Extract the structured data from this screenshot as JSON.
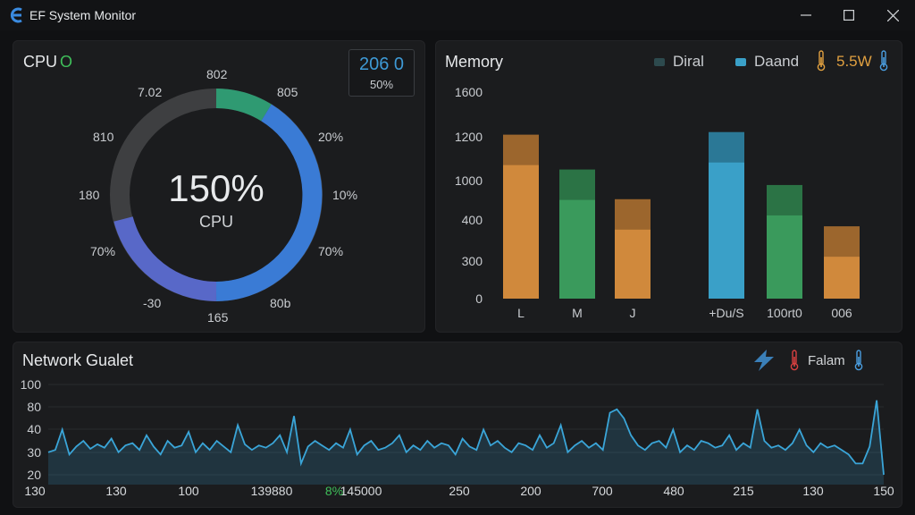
{
  "window": {
    "title": "EF System Monitor"
  },
  "colors": {
    "background": "#101113",
    "panel": "#1b1c1e",
    "accent_blue": "#3a7bd5",
    "accent_green": "#3a9a5c",
    "accent_orange": "#d0893c",
    "accent_cyan": "#3aa0c8",
    "network_line": "#3aa5d8"
  },
  "cpu": {
    "title": "CPU",
    "status_glyph": "O",
    "center_value": "150%",
    "center_label": "CPU",
    "badge_value": "206 0",
    "badge_sub": "50%",
    "gauge_labels": [
      "802",
      "805",
      "20%",
      "10%",
      "70%",
      "80b",
      "165",
      "-30",
      "70%",
      "180",
      "810",
      "7.02"
    ]
  },
  "memory": {
    "title": "Memory",
    "legend": [
      {
        "name": "Diral",
        "color": "#2d4a4e"
      },
      {
        "name": "Daand",
        "color": "#3aa0c8"
      }
    ],
    "power_value": "5.5W",
    "icons": [
      "thermometer-icon",
      "thermometer-icon"
    ]
  },
  "network": {
    "title": "Network Gualet",
    "status_label": "Falam",
    "x_labels": [
      "130",
      "130",
      "100",
      "139880",
      "145000",
      "250",
      "200",
      "700",
      "480",
      "215",
      "130",
      "150"
    ],
    "x_label_prefix": "8%",
    "y_ticks": [
      "100",
      "80",
      "40",
      "30",
      "20"
    ]
  },
  "chart_data": [
    {
      "type": "bar",
      "title": "Memory",
      "categories": [
        "L",
        "M",
        "J",
        "+Du/S",
        "100rt0",
        "006"
      ],
      "series": [
        {
          "values": [
            1270,
            1000,
            770,
            1290,
            880,
            560
          ]
        }
      ],
      "bar_colors": [
        "#d0893c",
        "#3a9a5c",
        "#d0893c",
        "#3aa0c8",
        "#3a9a5c",
        "#d0893c"
      ],
      "y_ticks": [
        "1600",
        "1200",
        "1000",
        "400",
        "300",
        "0"
      ],
      "ylim": [
        0,
        1600
      ],
      "grid": false,
      "legend": "top-right"
    },
    {
      "type": "line",
      "title": "Network Gualet",
      "x": [
        0,
        1,
        2,
        3,
        4,
        5,
        6,
        7,
        8,
        9,
        10,
        11,
        12,
        13,
        14,
        15,
        16,
        17,
        18,
        19,
        20,
        21,
        22,
        23,
        24,
        25,
        26,
        27,
        28,
        29,
        30,
        31,
        32,
        33,
        34,
        35,
        36,
        37,
        38,
        39,
        40,
        41,
        42,
        43,
        44,
        45,
        46,
        47,
        48,
        49,
        50,
        51,
        52,
        53,
        54,
        55,
        56,
        57,
        58,
        59,
        60,
        61,
        62,
        63,
        64,
        65,
        66,
        67,
        68,
        69,
        70,
        71,
        72,
        73,
        74,
        75,
        76,
        77,
        78,
        79,
        80,
        81,
        82,
        83,
        84,
        85,
        86,
        87,
        88,
        89,
        90,
        91,
        92,
        93,
        94,
        95,
        96,
        97,
        98,
        99,
        100,
        101,
        102,
        103,
        104,
        105,
        106,
        107,
        108,
        109,
        110,
        111,
        112,
        113,
        114,
        115,
        116,
        117,
        118,
        119
      ],
      "series": [
        {
          "values": [
            40,
            42,
            60,
            38,
            45,
            50,
            43,
            47,
            44,
            52,
            40,
            46,
            48,
            42,
            55,
            45,
            38,
            50,
            44,
            46,
            58,
            40,
            48,
            42,
            50,
            45,
            40,
            64,
            47,
            42,
            46,
            44,
            48,
            55,
            40,
            72,
            30,
            45,
            50,
            46,
            42,
            48,
            44,
            60,
            38,
            46,
            50,
            42,
            44,
            48,
            55,
            40,
            46,
            42,
            50,
            44,
            48,
            46,
            38,
            52,
            45,
            42,
            60,
            46,
            50,
            44,
            40,
            48,
            46,
            42,
            55,
            44,
            48,
            64,
            40,
            46,
            50,
            44,
            48,
            42,
            75,
            78,
            70,
            55,
            46,
            42,
            48,
            50,
            44,
            60,
            40,
            46,
            42,
            50,
            48,
            44,
            46,
            55,
            42,
            48,
            44,
            78,
            50,
            44,
            46,
            42,
            48,
            60,
            46,
            40,
            48,
            44,
            46,
            42,
            38,
            30,
            30,
            45,
            86,
            20
          ]
        }
      ],
      "y_ticks": [
        "100",
        "80",
        "40",
        "30",
        "20"
      ],
      "ylim": [
        15,
        100
      ],
      "grid": true
    }
  ]
}
